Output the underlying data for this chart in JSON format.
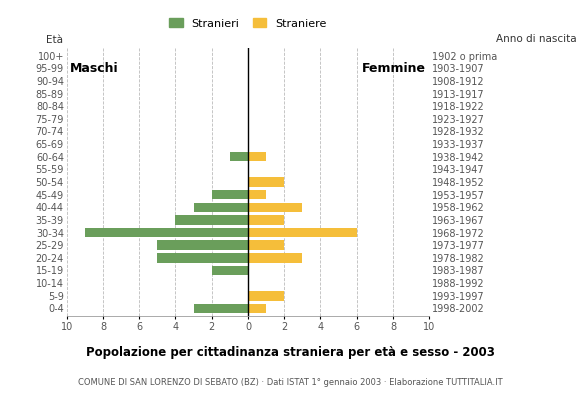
{
  "age_groups": [
    "0-4",
    "5-9",
    "10-14",
    "15-19",
    "20-24",
    "25-29",
    "30-34",
    "35-39",
    "40-44",
    "45-49",
    "50-54",
    "55-59",
    "60-64",
    "65-69",
    "70-74",
    "75-79",
    "80-84",
    "85-89",
    "90-94",
    "95-99",
    "100+"
  ],
  "birth_years": [
    "1998-2002",
    "1993-1997",
    "1988-1992",
    "1983-1987",
    "1978-1982",
    "1973-1977",
    "1968-1972",
    "1963-1967",
    "1958-1962",
    "1953-1957",
    "1948-1952",
    "1943-1947",
    "1938-1942",
    "1933-1937",
    "1928-1932",
    "1923-1927",
    "1918-1922",
    "1913-1917",
    "1908-1912",
    "1903-1907",
    "1902 o prima"
  ],
  "males": [
    3,
    0,
    0,
    2,
    5,
    5,
    9,
    4,
    3,
    2,
    0,
    0,
    1,
    0,
    0,
    0,
    0,
    0,
    0,
    0,
    0
  ],
  "females": [
    1,
    2,
    0,
    0,
    3,
    2,
    6,
    2,
    3,
    1,
    2,
    0,
    1,
    0,
    0,
    0,
    0,
    0,
    0,
    0,
    0
  ],
  "male_color": "#6a9e5b",
  "female_color": "#f5be3a",
  "title": "Popolazione per cittadinanza straniera per età e sesso - 2003",
  "subtitle": "COMUNE DI SAN LORENZO DI SEBATO (BZ) · Dati ISTAT 1° gennaio 2003 · Elaborazione TUTTITALIA.IT",
  "legend_male": "Stranieri",
  "legend_female": "Straniere",
  "label_left": "Maschi",
  "label_right": "Femmine",
  "ylabel_left": "Età",
  "ylabel_right": "Anno di nascita",
  "xlim": 10,
  "background_color": "#ffffff"
}
